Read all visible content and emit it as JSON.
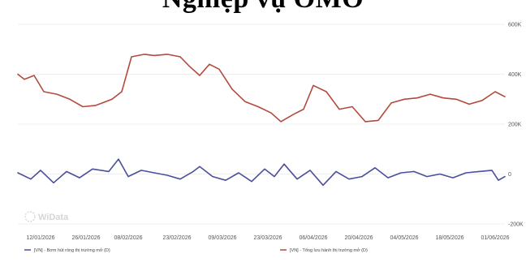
{
  "title": "Nghiệp vụ OMO",
  "watermark": "WiData",
  "chart_data": {
    "type": "line",
    "title": "Nghiệp vụ OMO",
    "xlabel": "",
    "ylabel": "",
    "x_ticks": [
      "12/01/2026",
      "26/01/2026",
      "08/02/2026",
      "23/02/2026",
      "09/03/2026",
      "23/03/2026",
      "06/04/2026",
      "20/04/2026",
      "04/05/2026",
      "18/05/2026",
      "01/06/2026"
    ],
    "y_ticks": [
      "600K",
      "400K",
      "200K",
      "0",
      "-200K"
    ],
    "ylim": [
      -200000,
      600000
    ],
    "grid": true,
    "legend_position": "bottom",
    "series": [
      {
        "name": "[VN] - Bơm hút ròng thị trường mở (D)",
        "color": "#4a4f9a",
        "x": [
          "05/01/2026",
          "09/01/2026",
          "12/01/2026",
          "16/01/2026",
          "20/01/2026",
          "24/01/2026",
          "28/01/2026",
          "02/02/2026",
          "05/02/2026",
          "08/02/2026",
          "12/02/2026",
          "16/02/2026",
          "20/02/2026",
          "24/02/2026",
          "28/02/2026",
          "02/03/2026",
          "06/03/2026",
          "10/03/2026",
          "14/03/2026",
          "18/03/2026",
          "22/03/2026",
          "25/03/2026",
          "28/03/2026",
          "01/04/2026",
          "05/04/2026",
          "09/04/2026",
          "13/04/2026",
          "17/04/2026",
          "21/04/2026",
          "25/04/2026",
          "29/04/2026",
          "03/05/2026",
          "07/05/2026",
          "11/05/2026",
          "15/05/2026",
          "19/05/2026",
          "23/05/2026",
          "27/05/2026",
          "31/05/2026",
          "02/06/2026",
          "04/06/2026"
        ],
        "values": [
          5000,
          -20000,
          15000,
          -35000,
          10000,
          -15000,
          20000,
          10000,
          60000,
          -10000,
          15000,
          5000,
          -5000,
          -20000,
          10000,
          30000,
          -10000,
          -25000,
          5000,
          -30000,
          20000,
          -10000,
          40000,
          -20000,
          15000,
          -45000,
          10000,
          -20000,
          -10000,
          25000,
          -15000,
          5000,
          10000,
          -10000,
          0,
          -15000,
          5000,
          10000,
          15000,
          -25000,
          -10000
        ]
      },
      {
        "name": "[VN] - Tổng lưu hành thị trường mở (D)",
        "color": "#b34a3e",
        "x": [
          "05/01/2026",
          "07/01/2026",
          "10/01/2026",
          "13/01/2026",
          "17/01/2026",
          "21/01/2026",
          "25/01/2026",
          "29/01/2026",
          "03/02/2026",
          "06/02/2026",
          "09/02/2026",
          "13/02/2026",
          "16/02/2026",
          "20/02/2026",
          "24/02/2026",
          "27/02/2026",
          "02/03/2026",
          "05/03/2026",
          "08/03/2026",
          "12/03/2026",
          "16/03/2026",
          "20/03/2026",
          "24/03/2026",
          "27/03/2026",
          "31/03/2026",
          "03/04/2026",
          "06/04/2026",
          "10/04/2026",
          "14/04/2026",
          "18/04/2026",
          "22/04/2026",
          "26/04/2026",
          "30/04/2026",
          "04/05/2026",
          "08/05/2026",
          "12/05/2026",
          "16/05/2026",
          "20/05/2026",
          "24/05/2026",
          "28/05/2026",
          "01/06/2026",
          "04/06/2026"
        ],
        "values": [
          400000,
          380000,
          395000,
          330000,
          320000,
          300000,
          270000,
          275000,
          300000,
          330000,
          470000,
          480000,
          475000,
          480000,
          470000,
          430000,
          395000,
          440000,
          420000,
          340000,
          290000,
          270000,
          245000,
          210000,
          240000,
          260000,
          355000,
          330000,
          260000,
          270000,
          210000,
          215000,
          285000,
          300000,
          305000,
          320000,
          305000,
          300000,
          280000,
          295000,
          330000,
          310000
        ]
      }
    ]
  }
}
